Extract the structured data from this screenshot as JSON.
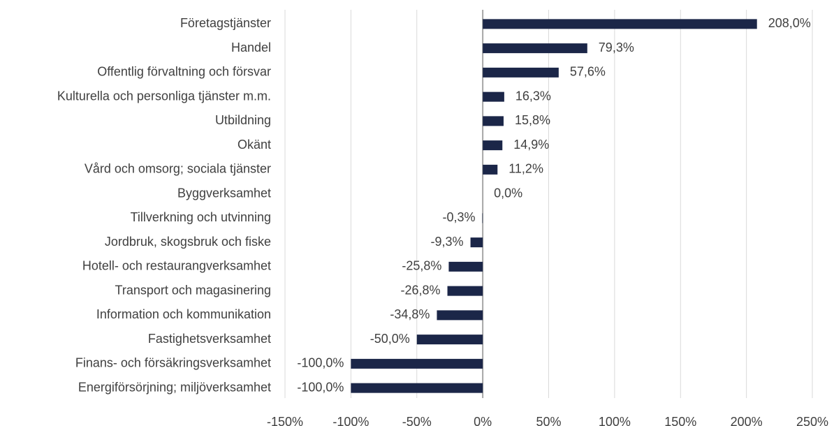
{
  "chart_data": {
    "type": "hbar",
    "categories": [
      "Företagstjänster",
      "Handel",
      "Offentlig förvaltning och försvar",
      "Kulturella och personliga tjänster m.m.",
      "Utbildning",
      "Okänt",
      "Vård och omsorg; sociala tjänster",
      "Byggverksamhet",
      "Tillverkning och utvinning",
      "Jordbruk, skogsbruk och fiske",
      "Hotell- och restaurangverksamhet",
      "Transport och magasinering",
      "Information och kommunikation",
      "Fastighetsverksamhet",
      "Finans- och försäkringsverksamhet",
      "Energiförsörjning; miljöverksamhet"
    ],
    "values": [
      208.0,
      79.3,
      57.6,
      16.3,
      15.8,
      14.9,
      11.2,
      0.0,
      -0.3,
      -9.3,
      -25.8,
      -26.8,
      -34.8,
      -50.0,
      -100.0,
      -100.0
    ],
    "value_labels": [
      "208,0%",
      "79,3%",
      "57,6%",
      "16,3%",
      "15,8%",
      "14,9%",
      "11,2%",
      "0,0%",
      "-0,3%",
      "-9,3%",
      "-25,8%",
      "-26,8%",
      "-34,8%",
      "-50,0%",
      "-100,0%",
      "-100,0%"
    ],
    "color": "#1b2648",
    "xlim": [
      -150,
      250
    ],
    "xticks": [
      {
        "value": -150,
        "label": "-150%"
      },
      {
        "value": -100,
        "label": "-100%"
      },
      {
        "value": -50,
        "label": "-50%"
      },
      {
        "value": 0,
        "label": "0%"
      },
      {
        "value": 50,
        "label": "50%"
      },
      {
        "value": 100,
        "label": "100%"
      },
      {
        "value": 150,
        "label": "150%"
      },
      {
        "value": 200,
        "label": "200%"
      },
      {
        "value": 250,
        "label": "250%"
      }
    ],
    "grid": true
  }
}
